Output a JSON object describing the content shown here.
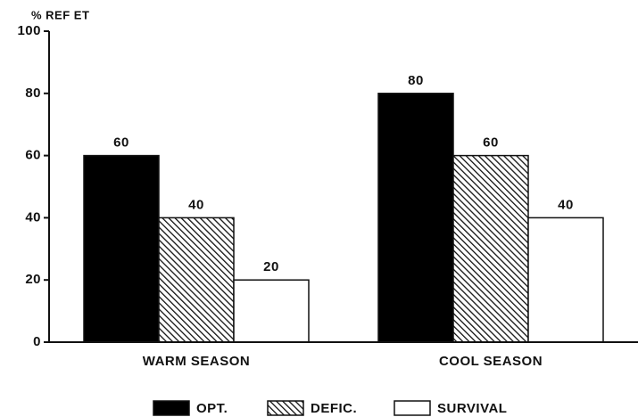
{
  "chart_data": {
    "type": "bar",
    "y_label": "% REF ET",
    "categories": [
      "WARM SEASON",
      "COOL SEASON"
    ],
    "series": [
      {
        "name": "OPT.",
        "color": "#000000",
        "values": [
          60,
          80
        ]
      },
      {
        "name": "DEFIC.",
        "color": "#000000",
        "hatch": true,
        "values": [
          40,
          60
        ]
      },
      {
        "name": "SURVIVAL",
        "color": "#ffffff",
        "values": [
          20,
          40
        ]
      }
    ],
    "ylim": [
      0,
      100
    ],
    "yticks": [
      0,
      20,
      40,
      60,
      80,
      100
    ],
    "grid": false,
    "legend": "bottom"
  }
}
